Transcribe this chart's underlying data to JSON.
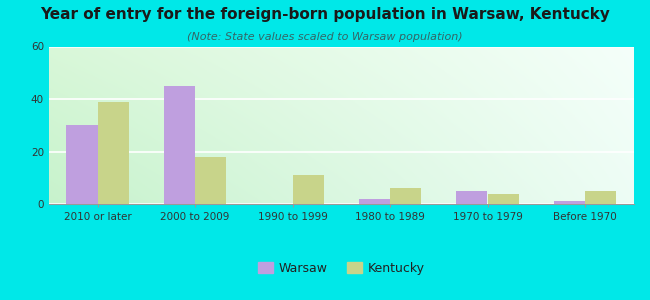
{
  "title": "Year of entry for the foreign-born population in Warsaw, Kentucky",
  "subtitle": "(Note: State values scaled to Warsaw population)",
  "categories": [
    "2010 or later",
    "2000 to 2009",
    "1990 to 1999",
    "1980 to 1989",
    "1970 to 1979",
    "Before 1970"
  ],
  "warsaw_values": [
    30,
    45,
    0,
    2,
    5,
    1
  ],
  "kentucky_values": [
    39,
    18,
    11,
    6,
    4,
    5
  ],
  "warsaw_color": "#bf9fdf",
  "kentucky_color": "#c8d48a",
  "ylim": [
    0,
    60
  ],
  "yticks": [
    0,
    20,
    40,
    60
  ],
  "bar_width": 0.32,
  "background_color": "#00e8e8",
  "legend_warsaw": "Warsaw",
  "legend_kentucky": "Kentucky",
  "title_fontsize": 11,
  "subtitle_fontsize": 8,
  "axis_fontsize": 7.5,
  "legend_fontsize": 9,
  "gradient_topleft": [
    0.85,
    0.97,
    0.85
  ],
  "gradient_topright": [
    0.96,
    1.0,
    0.98
  ],
  "gradient_bottomleft": [
    0.78,
    0.95,
    0.8
  ],
  "gradient_bottomright": [
    0.93,
    0.99,
    0.96
  ]
}
